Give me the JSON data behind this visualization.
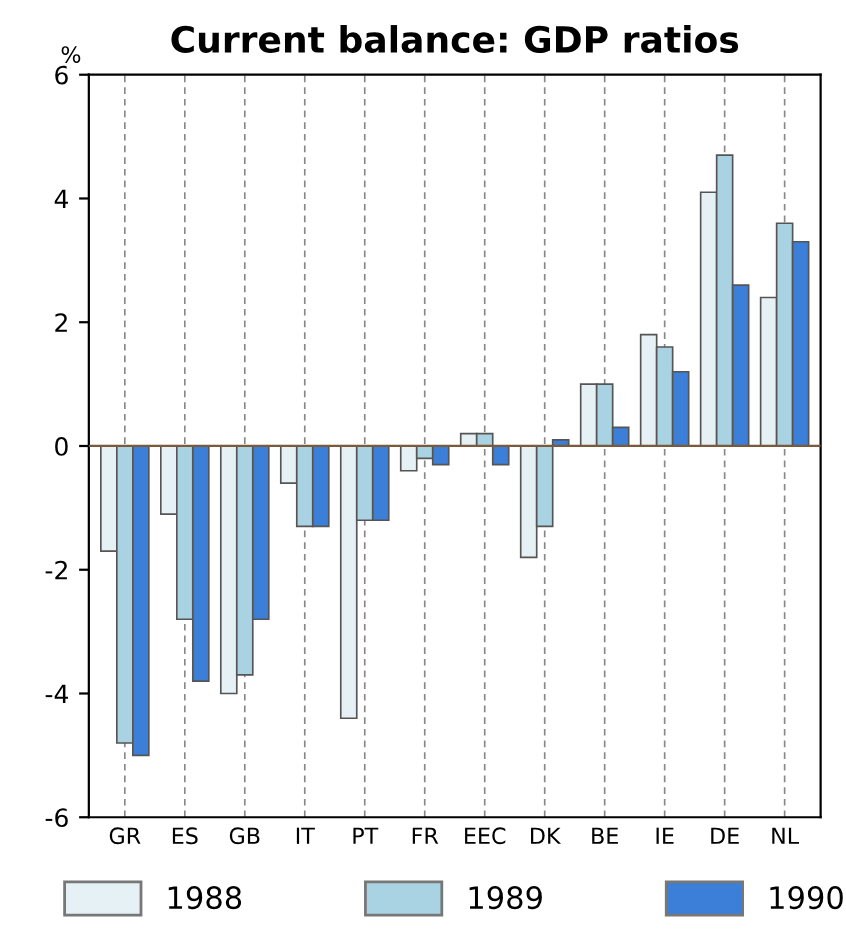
{
  "chart_data": {
    "type": "bar",
    "title": "Current balance: GDP ratios",
    "ylabel": "%",
    "categories": [
      "GR",
      "ES",
      "GB",
      "IT",
      "PT",
      "FR",
      "EEC",
      "DK",
      "BE",
      "IE",
      "DE",
      "NL"
    ],
    "series": [
      {
        "name": "1988",
        "color": "#e6f1f5",
        "values": [
          -1.7,
          -1.1,
          -4.0,
          -0.6,
          -4.4,
          -0.4,
          0.2,
          -1.8,
          1.0,
          1.8,
          4.1,
          2.4
        ]
      },
      {
        "name": "1989",
        "color": "#a9d3e3",
        "values": [
          -4.8,
          -2.8,
          -3.7,
          -1.3,
          -1.2,
          -0.2,
          0.2,
          -1.3,
          1.0,
          1.6,
          4.7,
          3.6
        ]
      },
      {
        "name": "1990",
        "color": "#3b7fd9",
        "values": [
          -5.0,
          -3.8,
          -2.8,
          -1.3,
          -1.2,
          -0.3,
          -0.3,
          0.1,
          0.3,
          1.2,
          2.6,
          3.3
        ]
      }
    ],
    "ylim": [
      -6,
      6
    ],
    "yticks": [
      -6,
      -4,
      -2,
      0,
      2,
      4,
      6
    ],
    "grid": "x",
    "ref_lines": [
      {
        "axis": "y",
        "value": 0,
        "color": "#7a5a3a"
      }
    ],
    "legend": "bottom"
  }
}
